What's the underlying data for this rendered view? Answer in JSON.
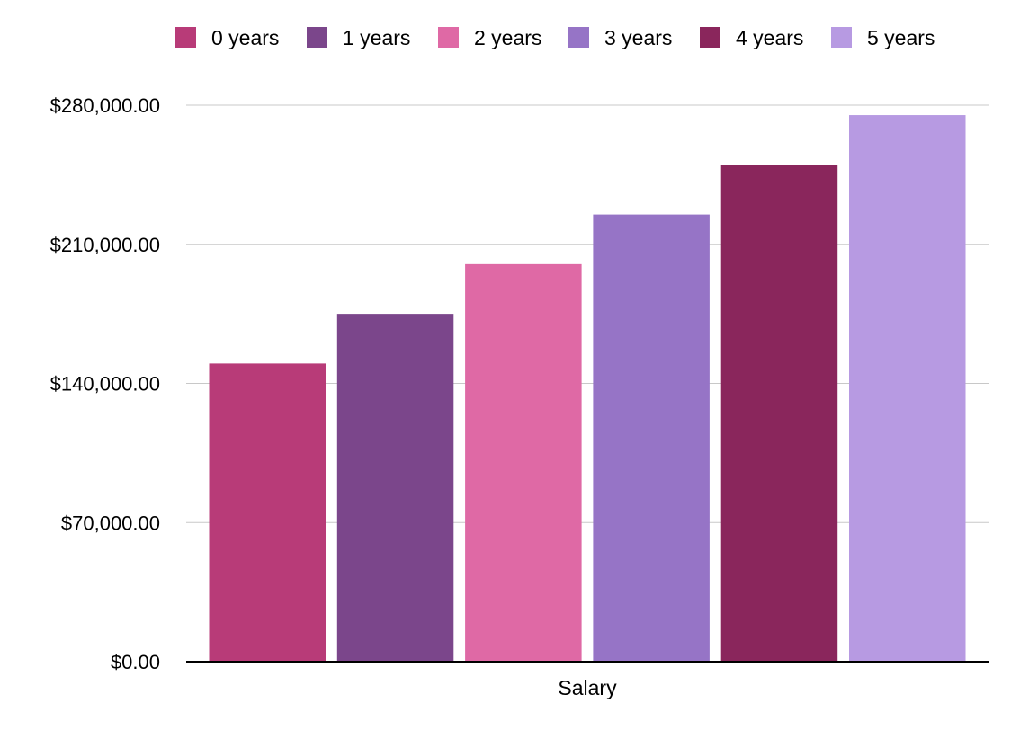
{
  "chart_data": {
    "type": "bar",
    "categories": [
      "Salary"
    ],
    "series": [
      {
        "name": "0 years",
        "values": [
          150000
        ],
        "color": "#B83B78"
      },
      {
        "name": "1 years",
        "values": [
          175000
        ],
        "color": "#7B468B"
      },
      {
        "name": "2 years",
        "values": [
          200000
        ],
        "color": "#DF69A5"
      },
      {
        "name": "3 years",
        "values": [
          225000
        ],
        "color": "#9674C6"
      },
      {
        "name": "4 years",
        "values": [
          250000
        ],
        "color": "#8A265C"
      },
      {
        "name": "5 years",
        "values": [
          275000
        ],
        "color": "#B79AE2"
      }
    ],
    "ylim": [
      0,
      280000
    ],
    "yticks": [
      0,
      70000,
      140000,
      210000,
      280000
    ],
    "ytick_labels": [
      "$0.00",
      "$70,000.00",
      "$140,000.00",
      "$210,000.00",
      "$280,000.00"
    ],
    "grid": true,
    "legend_position": "top",
    "title": "",
    "xlabel": "",
    "ylabel": ""
  }
}
